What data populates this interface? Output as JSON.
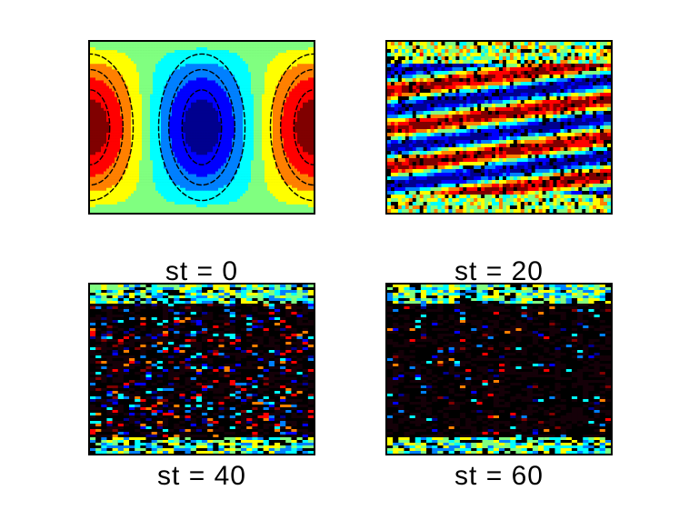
{
  "chart_data": [
    {
      "type": "heatmap",
      "panel_caption": "st = 0",
      "field": "cos(x)·sin(y) standing mode",
      "x_cells": 24,
      "y_cells": 18,
      "colormap": "jet",
      "contours": true
    },
    {
      "type": "heatmap",
      "panel_caption": "st = 20",
      "field": "noisy tilted bands",
      "colormap": "jet",
      "contours": true
    },
    {
      "type": "heatmap",
      "panel_caption": "st = 40",
      "field": "horizontal streaks, mostly dark interior",
      "colormap": "jet",
      "contours": true
    },
    {
      "type": "heatmap",
      "panel_caption": "st = 60",
      "field": "horizontal streaks, dark interior",
      "colormap": "jet",
      "contours": true
    }
  ],
  "colors": {
    "jet": [
      "#00008f",
      "#0000ff",
      "#0080ff",
      "#00ffff",
      "#80ff80",
      "#ffff00",
      "#ff8000",
      "#ff0000",
      "#800000"
    ],
    "background": "#ffffff"
  }
}
